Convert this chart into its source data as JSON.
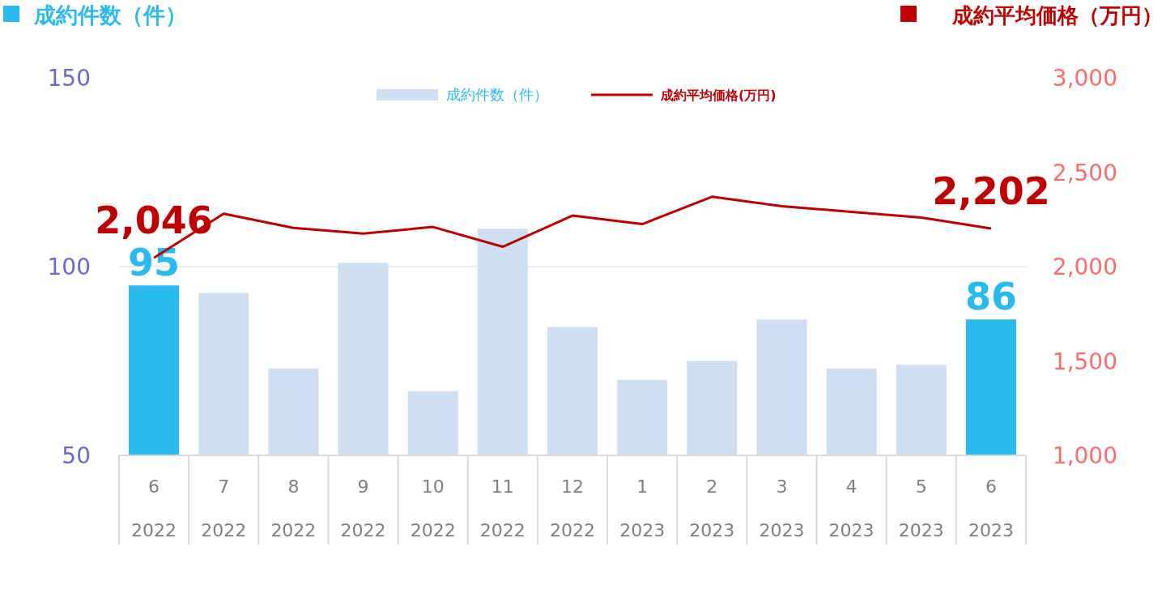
{
  "chart_data": {
    "type": "bar",
    "ylabel": "成約件数（件）",
    "y2label": "成約平均価格（万円）",
    "categories": [
      "6\n2022",
      "7\n2022",
      "8\n2022",
      "9\n2022",
      "10\n2022",
      "11\n2022",
      "12\n2022",
      "1\n2023",
      "2\n2023",
      "3\n2023",
      "4\n2023",
      "5\n2023",
      "6\n2023"
    ],
    "series": [
      {
        "name": "成約件数（件）",
        "color": "#cfdff3",
        "colors": [
          "#29bbef",
          "#cfdff3",
          "#cfdff3",
          "#cfdff3",
          "#cfdff3",
          "#cfdff3",
          "#cfdff3",
          "#cfdff3",
          "#cfdff3",
          "#cfdff3",
          "#cfdff3",
          "#cfdff3",
          "#29bbef"
        ],
        "values": [
          95,
          93,
          73,
          101,
          67,
          110,
          84,
          70,
          75,
          86,
          73,
          74,
          86
        ],
        "value_labels": [
          "95",
          null,
          null,
          null,
          null,
          null,
          null,
          null,
          null,
          null,
          null,
          null,
          "86"
        ]
      },
      {
        "name": "成約平均価格(万円)",
        "type": "line",
        "axis": "y2",
        "color": "#c00000",
        "values": [
          2046,
          2280,
          2205,
          2175,
          2210,
          2105,
          2270,
          2225,
          2370,
          2320,
          2290,
          2260,
          2202
        ],
        "value_labels": [
          "2,046",
          null,
          null,
          null,
          null,
          null,
          null,
          null,
          null,
          null,
          null,
          null,
          "2,202"
        ]
      }
    ],
    "ylim": [
      50,
      150
    ],
    "yticks": [
      50,
      100,
      150
    ],
    "y2lim": [
      1000,
      3000
    ],
    "y2ticks": [
      {
        "value": 1000,
        "label": "1,000"
      },
      {
        "value": 1500,
        "label": "1,500"
      },
      {
        "value": 2000,
        "label": "2,000"
      },
      {
        "value": 2500,
        "label": "2,500"
      },
      {
        "value": 3000,
        "label": "3,000"
      }
    ],
    "grid": "y",
    "legend": "top",
    "marker": "none",
    "line_style": "solid"
  }
}
